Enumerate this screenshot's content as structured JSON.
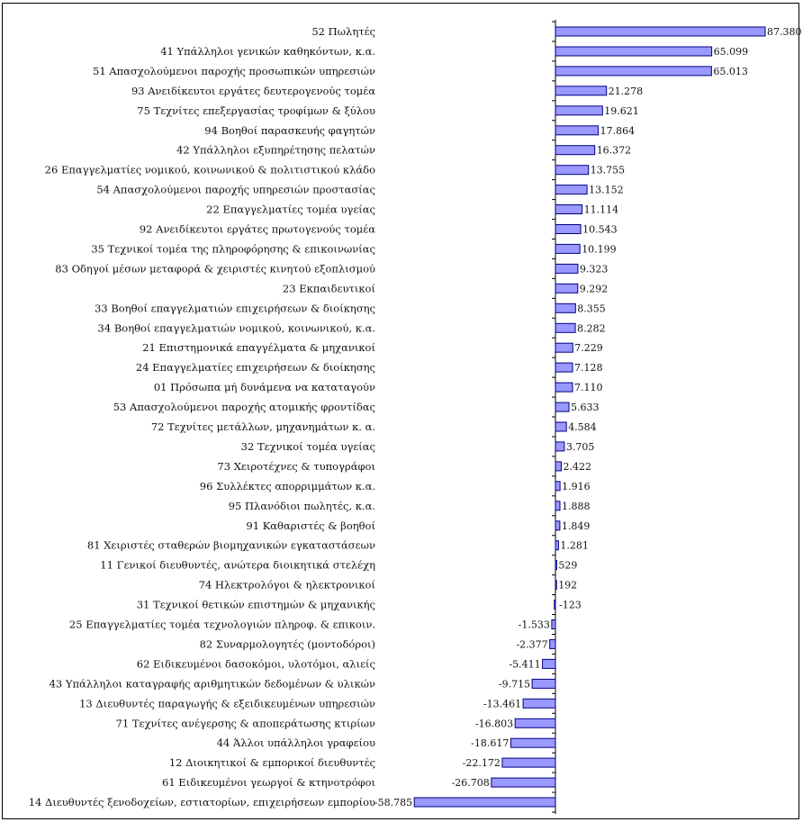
{
  "chart_data": {
    "type": "bar",
    "orientation": "horizontal",
    "bar_color": "#9999ff",
    "bar_edge_color": "#000080",
    "categories": [
      "52 Πωλητές",
      "41 Υπάλληλοι γενικών καθηκόντων, κ.α.",
      "51 Απασχολούμενοι παροχής προσωπικών υπηρεσιών",
      "93 Ανειδίκευτοι εργάτες δευτερογενούς τομέα",
      "75 Τεχνίτες επεξεργασίας τροφίμων & ξύλου",
      "94 Βοηθοί παρασκευής φαγητών",
      "42 Υπάλληλοι εξυπηρέτησης πελατών",
      "26 Επαγγελματίες νομικού, κοινωνικού & πολιτιστικού κλάδο",
      "54 Απασχολούμενοι παροχής υπηρεσιών προστασίας",
      "22 Επαγγελματίες τομέα υγείας",
      "92 Ανειδίκευτοι εργάτες πρωτογενούς τομέα",
      "35 Τεχνικοί τομέα της πληροφόρησης & επικοινωνίας",
      "83 Οδηγοί μέσων μεταφορά & χειριστές κινητού εξοπλισμού",
      "23 Εκπαιδευτικοί",
      "33 Βοηθοί επαγγελματιών επιχειρήσεων & διοίκησης",
      "34 Βοηθοί επαγγελματιών νομικού, κοινωνικού, κ.α.",
      "21 Επιστημονικά επαγγέλματα & μηχανικοί",
      "24 Επαγγελματίες επιχειρήσεων & διοίκησης",
      "01 Πρόσωπα μή δυνάμενα να καταταγούν",
      "53 Απασχολούμενοι παροχής ατομικής φροντίδας",
      "72 Τεχνίτες μετάλλων, μηχανημάτων κ. α.",
      "32 Τεχνικοί τομέα υγείας",
      "73 Χειροτέχνες & τυπογράφοι",
      "96 Συλλέκτες απορριμμάτων κ.α.",
      "95 Πλανόδιοι πωλητές, κ.α.",
      "91 Καθαριστές & βοηθοί",
      "81 Χειριστές σταθερών βιομηχανικών εγκαταστάσεων",
      "11 Γενικοί διευθυντές, ανώτερα διοικητικά στελέχη",
      "74 Ηλεκτρολόγοι & ηλεκτρονικοί",
      "31 Τεχνικοί θετικών επιστημών & μηχανικής",
      "25 Επαγγελματίες τομέα τεχνολογιών πληροφ. & επικοιν.",
      "82 Συναρμολογητές (μοντοδόροι)",
      "62 Ειδικευμένοι δασοκόμοι, υλοτόμοι, αλιείς",
      "43 Υπάλληλοι καταγραφής αριθμητικών δεδομένων & υλικών",
      "13 Διευθυντές παραγωγής & εξειδικευμένων υπηρεσιών",
      "71 Τεχνίτες ανέγερσης & αποπεράτωσης κτιρίων",
      "44 Άλλοι υπάλληλοι γραφείου",
      "12 Διοικητικοί & εμπορικοί διευθυντές",
      "61 Ειδικευμένοι γεωργοί & κτηνοτρόφοι",
      "14 Διευθυντές ξενοδοχείων, εστιατορίων, επιχειρήσεων εμπορίου"
    ],
    "values": [
      87380,
      65099,
      65013,
      21278,
      19621,
      17864,
      16372,
      13755,
      13152,
      11114,
      10543,
      10199,
      9323,
      9292,
      8355,
      8282,
      7229,
      7128,
      7110,
      5633,
      4584,
      3705,
      2422,
      1916,
      1888,
      1849,
      1281,
      529,
      192,
      -123,
      -1533,
      -2377,
      -5411,
      -9715,
      -13461,
      -16803,
      -18617,
      -22172,
      -26708,
      -58785
    ],
    "value_labels": [
      "87.380",
      "65.099",
      "65.013",
      "21.278",
      "19.621",
      "17.864",
      "16.372",
      "13.755",
      "13.152",
      "11.114",
      "10.543",
      "10.199",
      "9.323",
      "9.292",
      "8.355",
      "8.282",
      "7.229",
      "7.128",
      "7.110",
      "5.633",
      "4.584",
      "3.705",
      "2.422",
      "1.916",
      "1.888",
      "1.849",
      "1.281",
      "529",
      "192",
      "-123",
      "-1.533",
      "-2.377",
      "-5.411",
      "-9.715",
      "-13.461",
      "-16.803",
      "-18.617",
      "-22.172",
      "-26.708",
      "-58.785"
    ],
    "title": "",
    "xlabel": "",
    "ylabel": "",
    "grid": false,
    "legend": false
  }
}
